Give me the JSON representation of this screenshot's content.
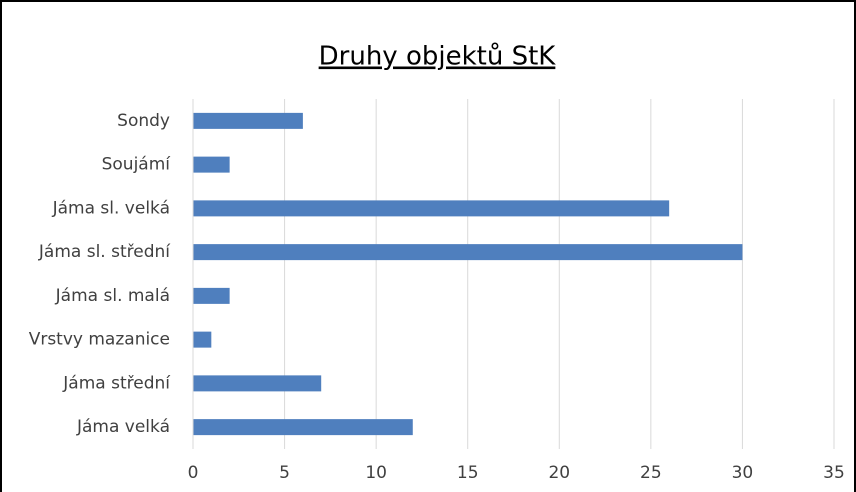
{
  "chart_data": {
    "type": "bar",
    "orientation": "horizontal",
    "title": "Druhy objektů StK",
    "categories": [
      "Sondy",
      "Soujámí",
      "Jáma sl. velká",
      "Jáma sl. střední",
      "Jáma sl. malá",
      "Vrstvy mazanice",
      "Jáma střední",
      "Jáma velká"
    ],
    "values": [
      6,
      2,
      26,
      30,
      2,
      1,
      7,
      12
    ],
    "color": "#4f7fbe",
    "xlim": [
      0,
      35
    ],
    "xticks": [
      0,
      5,
      10,
      15,
      20,
      25,
      30,
      35
    ],
    "grid": true
  }
}
